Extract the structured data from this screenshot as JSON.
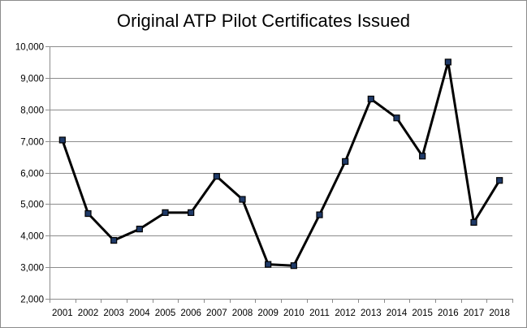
{
  "chart_data": {
    "type": "line",
    "title": "Original ATP Pilot Certificates Issued",
    "xlabel": "",
    "ylabel": "",
    "categories": [
      "2001",
      "2002",
      "2003",
      "2004",
      "2005",
      "2006",
      "2007",
      "2008",
      "2009",
      "2010",
      "2011",
      "2012",
      "2013",
      "2014",
      "2015",
      "2016",
      "2017",
      "2018"
    ],
    "series": [
      {
        "values": [
          7030,
          4700,
          3850,
          4210,
          4730,
          4730,
          5880,
          5150,
          3090,
          3050,
          4660,
          6350,
          8330,
          7730,
          6520,
          9500,
          4420,
          5750
        ]
      }
    ],
    "ylim": [
      2000,
      10000
    ],
    "yticks": [
      "2,000",
      "3,000",
      "4,000",
      "5,000",
      "6,000",
      "7,000",
      "8,000",
      "9,000",
      "10,000"
    ],
    "grid": "horizontal",
    "line_color": "#000000",
    "marker_color": "#1f3a68"
  }
}
